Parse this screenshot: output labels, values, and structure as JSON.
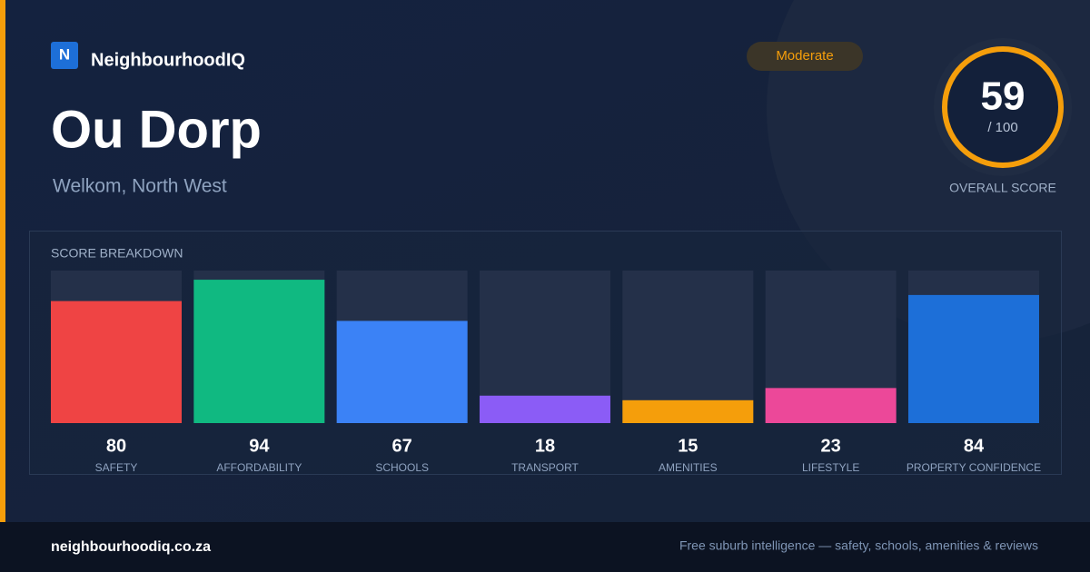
{
  "brand": "NeighbourhoodIQ",
  "logo_letter": "N",
  "title": "Ou Dorp",
  "subtitle": "Welkom, North West",
  "rating": "Moderate",
  "overall_score": 59,
  "overall_max_label": "/ 100",
  "overall_label": "OVERALL SCORE",
  "chart_data": {
    "type": "bar",
    "title": "SCORE BREAKDOWN",
    "categories": [
      "SAFETY",
      "AFFORDABILITY",
      "SCHOOLS",
      "TRANSPORT",
      "AMENITIES",
      "LIFESTYLE",
      "PROPERTY CONFIDENCE"
    ],
    "values": [
      80,
      94,
      67,
      18,
      15,
      23,
      84
    ],
    "colors": [
      "#ef4444",
      "#10b981",
      "#3b82f6",
      "#8b5cf6",
      "#f59e0b",
      "#ec4899",
      "#1d6fd8"
    ],
    "ylim": [
      0,
      100
    ]
  },
  "footer": {
    "site": "neighbourhoodiq.co.za",
    "tagline": "Free suburb intelligence — safety, schools, amenities & reviews"
  }
}
